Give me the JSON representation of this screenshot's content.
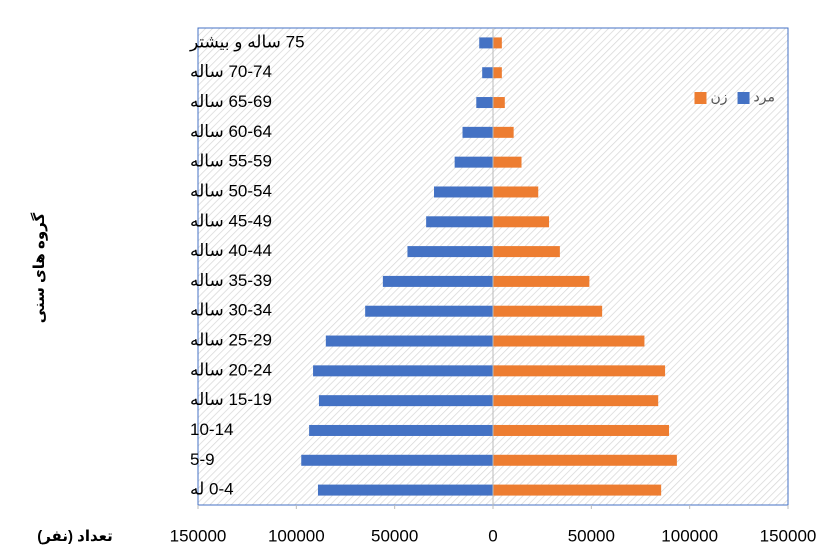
{
  "chart_data": {
    "type": "pyramid",
    "ylabel": "گروه های سنی",
    "xlabel": "تعداد (نفر)",
    "categories": [
      "0-4 له",
      "5-9",
      "10-14",
      "15-19 ساله",
      "20-24 ساله",
      "25-29 ساله",
      "30-34 ساله",
      "35-39 ساله",
      "40-44 ساله",
      "45-49 ساله",
      "50-54 ساله",
      "55-59 ساله",
      "60-64 ساله",
      "65-69 ساله",
      "70-74 ساله",
      "75 ساله و بیشتر"
    ],
    "series": [
      {
        "name": "مرد",
        "color": "#4472c4",
        "values": [
          -89000,
          -97500,
          -93500,
          -88500,
          -91500,
          -85000,
          -65000,
          -56000,
          -43500,
          -34000,
          -30000,
          -19500,
          -15500,
          -8500,
          -5500,
          -7000
        ]
      },
      {
        "name": "زن",
        "color": "#ed7d31",
        "values": [
          85500,
          93500,
          89500,
          84000,
          87500,
          77000,
          55500,
          49000,
          34000,
          28500,
          23000,
          14500,
          10500,
          6000,
          4500,
          4500
        ]
      }
    ],
    "xlim": [
      -150000,
      150000
    ],
    "xticks": [
      {
        "value": -150000,
        "label": "150000"
      },
      {
        "value": -100000,
        "label": "100000"
      },
      {
        "value": -50000,
        "label": "50000"
      },
      0,
      50000,
      100000,
      150000
    ],
    "legend": "upper right"
  }
}
